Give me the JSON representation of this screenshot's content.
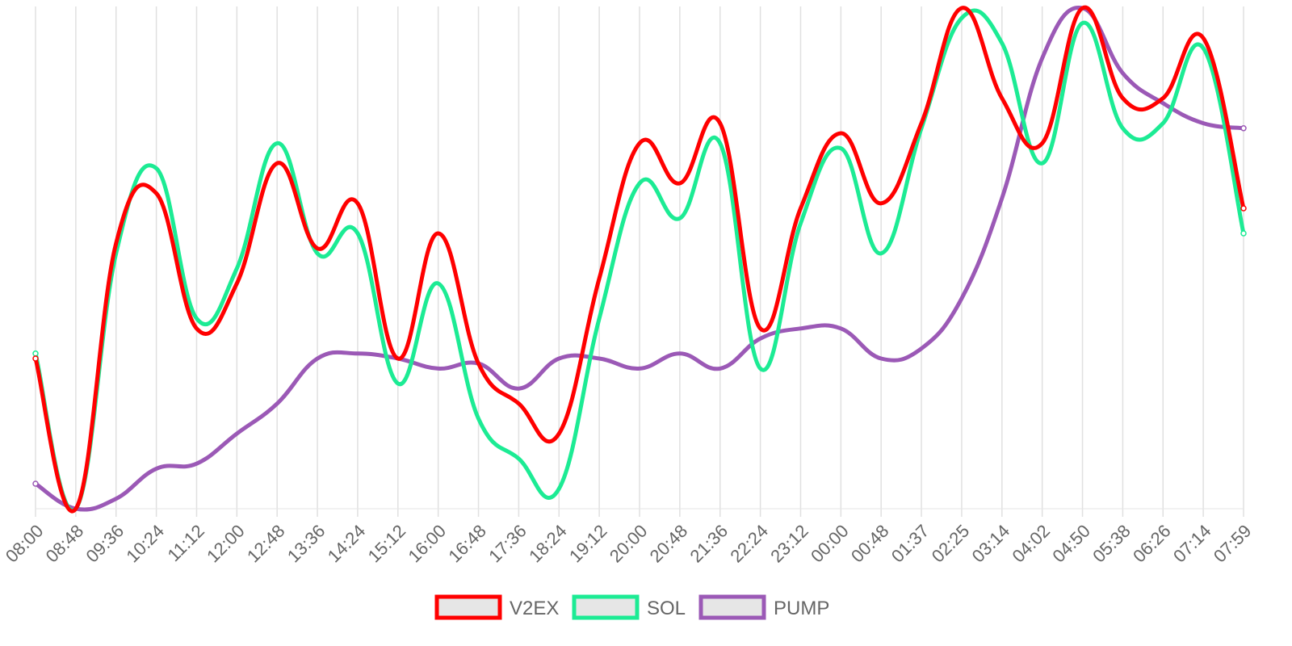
{
  "chart_data": {
    "type": "line",
    "title": "",
    "xlabel": "",
    "ylabel": "",
    "x": [
      "08:00",
      "08:48",
      "09:36",
      "10:24",
      "11:12",
      "12:00",
      "12:48",
      "13:36",
      "14:24",
      "15:12",
      "16:00",
      "16:48",
      "17:36",
      "18:24",
      "19:12",
      "20:00",
      "20:48",
      "21:36",
      "22:24",
      "23:12",
      "00:00",
      "00:48",
      "01:37",
      "02:25",
      "03:14",
      "04:02",
      "04:50",
      "05:38",
      "06:26",
      "07:14",
      "07:59"
    ],
    "ylim": [
      0,
      100
    ],
    "grid": "vertical",
    "legend": "bottom-center",
    "series": [
      {
        "name": "V2EX",
        "color": "#ff0000",
        "values": [
          30,
          0,
          53,
          63,
          36,
          45,
          69,
          52,
          61,
          30,
          55,
          29,
          21,
          15,
          46,
          73,
          65,
          77,
          36,
          60,
          75,
          61,
          77,
          100,
          82,
          73,
          100,
          82,
          82,
          94,
          60
        ]
      },
      {
        "name": "SOL",
        "color": "#1ceb94",
        "values": [
          31,
          0,
          51,
          68,
          38,
          48,
          73,
          51,
          55,
          25,
          45,
          18,
          10,
          4,
          38,
          65,
          58,
          73,
          28,
          57,
          72,
          51,
          76,
          98,
          93,
          69,
          97,
          76,
          77,
          92,
          55
        ]
      },
      {
        "name": "PUMP",
        "color": "#9b59b6",
        "values": [
          5,
          0,
          2,
          8,
          9,
          15,
          21,
          30,
          31,
          30,
          28,
          29,
          24,
          30,
          30,
          28,
          31,
          28,
          34,
          36,
          36,
          30,
          32,
          42,
          62,
          90,
          100,
          87,
          81,
          77,
          76
        ]
      }
    ]
  }
}
